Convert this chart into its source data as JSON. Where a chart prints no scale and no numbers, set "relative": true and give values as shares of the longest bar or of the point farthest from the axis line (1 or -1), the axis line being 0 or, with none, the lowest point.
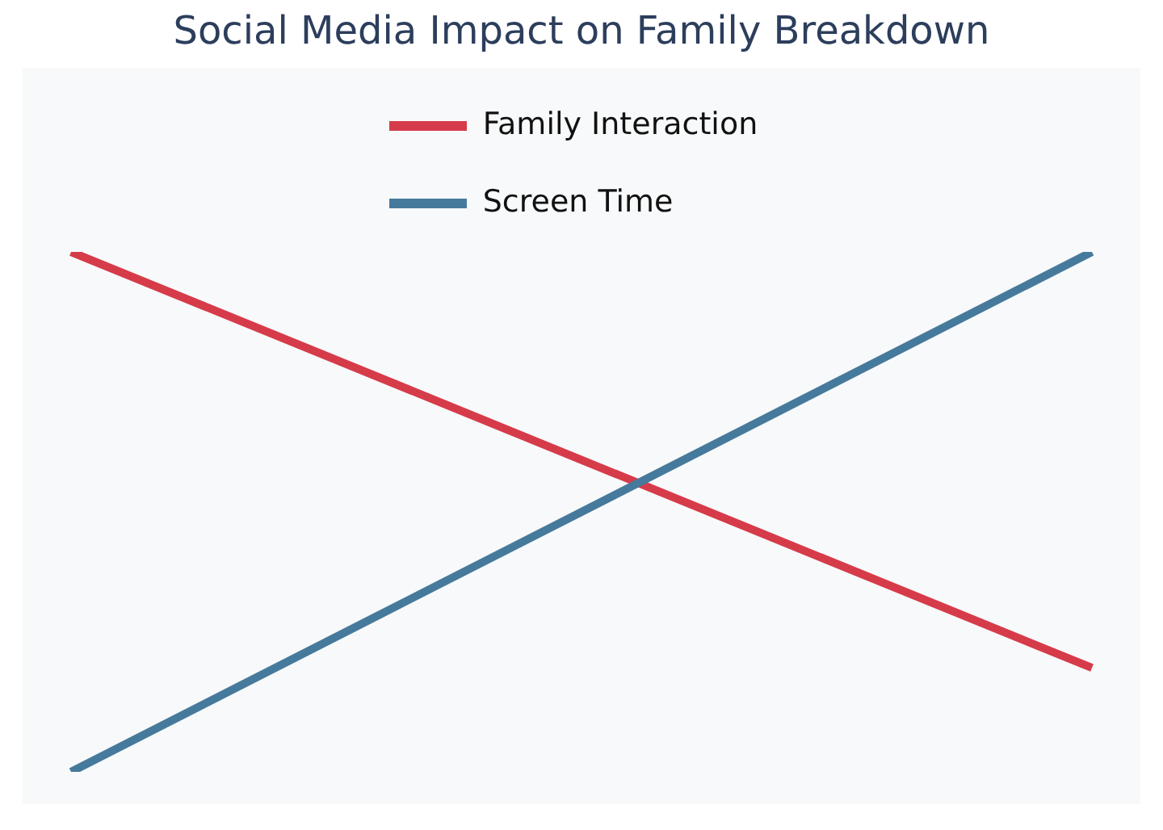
{
  "chart_data": {
    "type": "line",
    "title": "Social Media Impact on Family Breakdown",
    "relative": true,
    "categories": [
      null,
      null
    ],
    "legend": "top",
    "marker": "none",
    "line_style": "solid",
    "series": [
      {
        "name": "Family Interaction",
        "color": "#d63b4a",
        "values": [
          1,
          0.2
        ]
      },
      {
        "name": "Screen Time",
        "color": "#467a9c",
        "values": [
          0,
          1
        ]
      }
    ]
  }
}
